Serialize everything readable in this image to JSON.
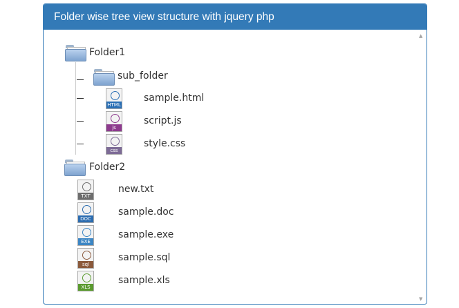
{
  "header": {
    "title": "Folder wise tree view structure with jquery php"
  },
  "colors": {
    "header": "#337ab7",
    "html": "#2a6fb5",
    "js": "#8e3a8e",
    "css": "#7d6b96",
    "txt": "#6d6d6d",
    "doc": "#2b6cb0",
    "exe": "#3c86c4",
    "sql": "#8b5a3c",
    "xls": "#5a9a2e"
  },
  "tree": {
    "folder1": {
      "label": "Folder1",
      "sub_folder": {
        "label": "sub_folder"
      },
      "files": [
        {
          "label": "sample.html",
          "tag": "HTML",
          "icon": "html-file-icon"
        },
        {
          "label": "script.js",
          "tag": "js",
          "icon": "js-file-icon"
        },
        {
          "label": "style.css",
          "tag": "css",
          "icon": "css-file-icon"
        }
      ]
    },
    "folder2": {
      "label": "Folder2",
      "files": [
        {
          "label": "new.txt",
          "tag": "TXT",
          "icon": "txt-file-icon"
        },
        {
          "label": "sample.doc",
          "tag": "DOC",
          "icon": "doc-file-icon"
        },
        {
          "label": "sample.exe",
          "tag": "EXE",
          "icon": "exe-file-icon"
        },
        {
          "label": "sample.sql",
          "tag": "sql",
          "icon": "sql-file-icon"
        },
        {
          "label": "sample.xls",
          "tag": "XLS",
          "icon": "xls-file-icon"
        }
      ]
    }
  },
  "scrollbar": {
    "up": "▲",
    "down": "▼"
  }
}
